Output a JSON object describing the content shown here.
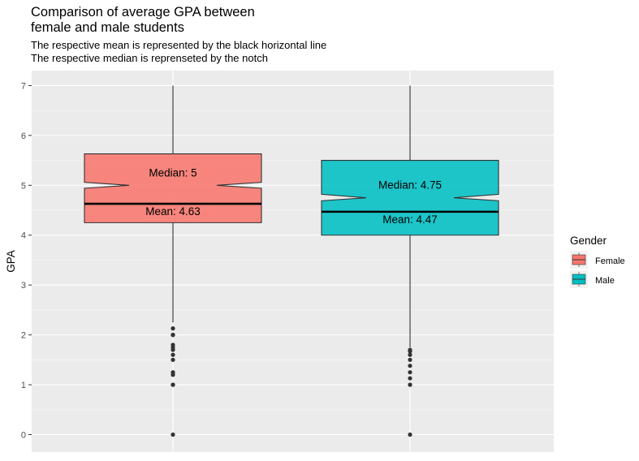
{
  "chart_data": {
    "type": "boxplot",
    "title": "Comparison of average GPA between female and male students",
    "title_lines": [
      "Comparison of average GPA between",
      "female and male students"
    ],
    "subtitle_lines": [
      "The respective mean is represented by the black horizontal line",
      "The respective median is reprenseted by the notch"
    ],
    "xlabel": "",
    "ylabel": "GPA",
    "ylim": [
      -0.35,
      7.3
    ],
    "y_ticks": [
      0,
      1,
      2,
      3,
      4,
      5,
      6,
      7
    ],
    "grid": true,
    "legend": {
      "title": "Gender",
      "position": "right",
      "entries": [
        {
          "label": "Female",
          "color": "#F8766D"
        },
        {
          "label": "Male",
          "color": "#00BFC4"
        }
      ]
    },
    "groups": [
      {
        "name": "Female",
        "color": "#F8766D",
        "q1": 4.25,
        "median": 5.0,
        "q3": 5.63,
        "whisker_low": 2.25,
        "whisker_high": 7.0,
        "notch_low": 4.94,
        "notch_high": 5.06,
        "mean": 4.63,
        "median_label": "Median:  5",
        "mean_label": "Mean:  4.63",
        "outliers": [
          0,
          1.0,
          1.0,
          1.0,
          1.2,
          1.25,
          1.5,
          1.6,
          1.7,
          1.75,
          1.8,
          2.0,
          2.0,
          2.13
        ]
      },
      {
        "name": "Male",
        "color": "#00BFC4",
        "q1": 4.0,
        "median": 4.75,
        "q3": 5.5,
        "whisker_low": 1.75,
        "whisker_high": 7.0,
        "notch_low": 4.69,
        "notch_high": 4.82,
        "mean": 4.47,
        "median_label": "Median:  4.75",
        "mean_label": "Mean:  4.47",
        "outliers": [
          0,
          1.0,
          1.0,
          1.13,
          1.25,
          1.38,
          1.5,
          1.6,
          1.67,
          1.7
        ]
      }
    ]
  }
}
